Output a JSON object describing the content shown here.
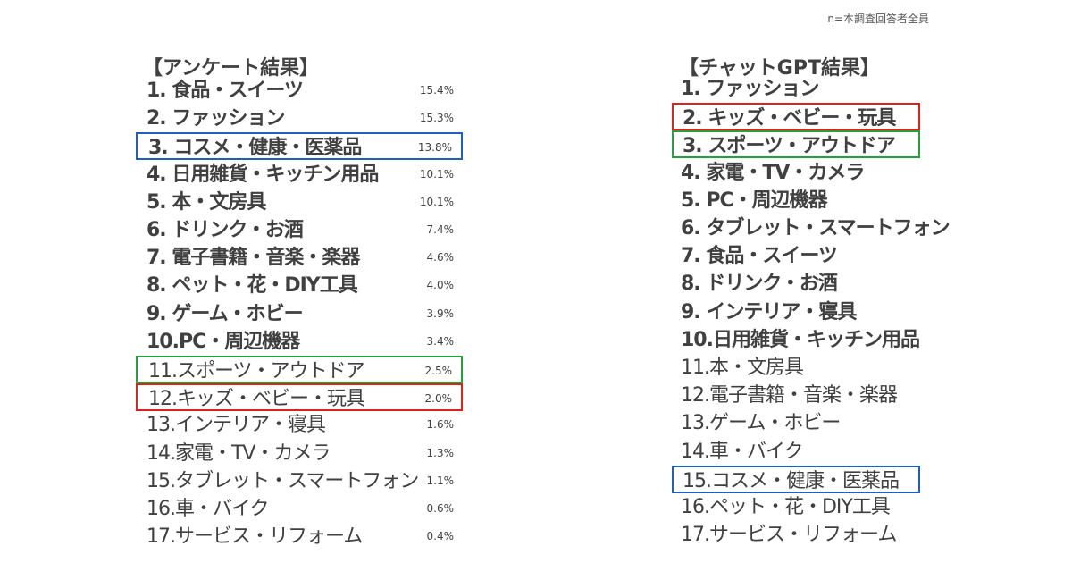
{
  "note": "n=本調査回答者全員",
  "survey": {
    "title": "【アンケート結果】",
    "items": [
      {
        "label": "1.  食品・スイーツ",
        "pct": "15.4%",
        "bold": true
      },
      {
        "label": "2.  ファッション",
        "pct": "15.3%",
        "bold": true
      },
      {
        "label": "3.  コスメ・健康・医薬品",
        "pct": "13.8%",
        "bold": true,
        "highlight": "blue"
      },
      {
        "label": "4.  日用雑貨・キッチン用品",
        "pct": "10.1%",
        "bold": true
      },
      {
        "label": "5.  本・文房具",
        "pct": "10.1%",
        "bold": true
      },
      {
        "label": "6.  ドリンク・お酒",
        "pct": "7.4%",
        "bold": true
      },
      {
        "label": "7.  電子書籍・音楽・楽器",
        "pct": "4.6%",
        "bold": true
      },
      {
        "label": "8.  ペット・花・DIY工具",
        "pct": "4.0%",
        "bold": true
      },
      {
        "label": "9.  ゲーム・ホビー",
        "pct": "3.9%",
        "bold": true
      },
      {
        "label": "10.PC・周辺機器",
        "pct": "3.4%",
        "bold": true
      },
      {
        "label": "11.スポーツ・アウトドア",
        "pct": "2.5%",
        "bold": false,
        "highlight": "green"
      },
      {
        "label": "12.キッズ・ベビー・玩具",
        "pct": "2.0%",
        "bold": false,
        "highlight": "red"
      },
      {
        "label": "13.インテリア・寝具",
        "pct": "1.6%",
        "bold": false
      },
      {
        "label": "14.家電・TV・カメラ",
        "pct": "1.3%",
        "bold": false
      },
      {
        "label": "15.タブレット・スマートフォン",
        "pct": "1.1%",
        "bold": false
      },
      {
        "label": "16.車・バイク",
        "pct": "0.6%",
        "bold": false
      },
      {
        "label": "17.サービス・リフォーム",
        "pct": "0.4%",
        "bold": false
      }
    ]
  },
  "chatgpt": {
    "title": "【チャットGPT結果】",
    "items": [
      {
        "label": "1.  ファッション",
        "bold": true
      },
      {
        "label": "2.  キッズ・ベビー・玩具",
        "bold": true,
        "highlight": "red"
      },
      {
        "label": "3.  スポーツ・アウトドア",
        "bold": true,
        "highlight": "green"
      },
      {
        "label": "4.  家電・TV・カメラ",
        "bold": true
      },
      {
        "label": "5.  PC・周辺機器",
        "bold": true
      },
      {
        "label": "6.  タブレット・スマートフォン",
        "bold": true
      },
      {
        "label": "7.  食品・スイーツ",
        "bold": true
      },
      {
        "label": "8.  ドリンク・お酒",
        "bold": true
      },
      {
        "label": "9.  インテリア・寝具",
        "bold": true
      },
      {
        "label": "10.日用雑貨・キッチン用品",
        "bold": true
      },
      {
        "label": "11.本・文房具",
        "bold": false
      },
      {
        "label": "12.電子書籍・音楽・楽器",
        "bold": false
      },
      {
        "label": "13.ゲーム・ホビー",
        "bold": false
      },
      {
        "label": "14.車・バイク",
        "bold": false
      },
      {
        "label": "15.コスメ・健康・医薬品",
        "bold": false,
        "highlight": "blue"
      },
      {
        "label": "16.ペット・花・DIY工具",
        "bold": false
      },
      {
        "label": "17.サービス・リフォーム",
        "bold": false
      }
    ]
  }
}
